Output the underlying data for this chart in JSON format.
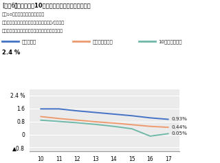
{
  "title_prefix": "[図表6]",
  "title_bold": "負債利子率、10年国債利回り、投資法人債利率",
  "note1": "注：10年国債利回り：年平均値、",
  "note2": "負債利子率：（支払利息＋融資関連費用）/負債平残",
  "note3": "出所：開示資料をもとにニッセイ基礎研究所が作成",
  "legend_labels": [
    "負債利子率",
    "投資法人債利率",
    "10年国債利回り"
  ],
  "legend_colors": [
    "#4472C4",
    "#ED9B6E",
    "#70B8A8"
  ],
  "x_labels": [
    "10",
    "11",
    "12",
    "13",
    "14",
    "15",
    "16",
    "17"
  ],
  "x_values": [
    10,
    11,
    12,
    13,
    14,
    15,
    16,
    17
  ],
  "series_fusai": [
    1.57,
    1.57,
    1.45,
    1.35,
    1.25,
    1.15,
    1.02,
    0.93
  ],
  "series_hojin": [
    1.1,
    0.98,
    0.88,
    0.78,
    0.7,
    0.6,
    0.5,
    0.44
  ],
  "series_kokusai": [
    0.88,
    0.8,
    0.72,
    0.62,
    0.5,
    0.35,
    -0.1,
    0.05
  ],
  "end_labels": [
    "0.93%",
    "0.44%",
    "0.05%"
  ],
  "yticks": [
    2.4,
    1.6,
    0.8,
    0,
    -0.8
  ],
  "ytick_labels": [
    "2.4 %",
    "1.6",
    "0.8",
    "0",
    "▲0.8"
  ],
  "ylim": [
    -1.05,
    2.75
  ],
  "plot_bg_color": "#EBEBEB",
  "fig_bg_color": "#FFFFFF",
  "line_width": 1.4
}
